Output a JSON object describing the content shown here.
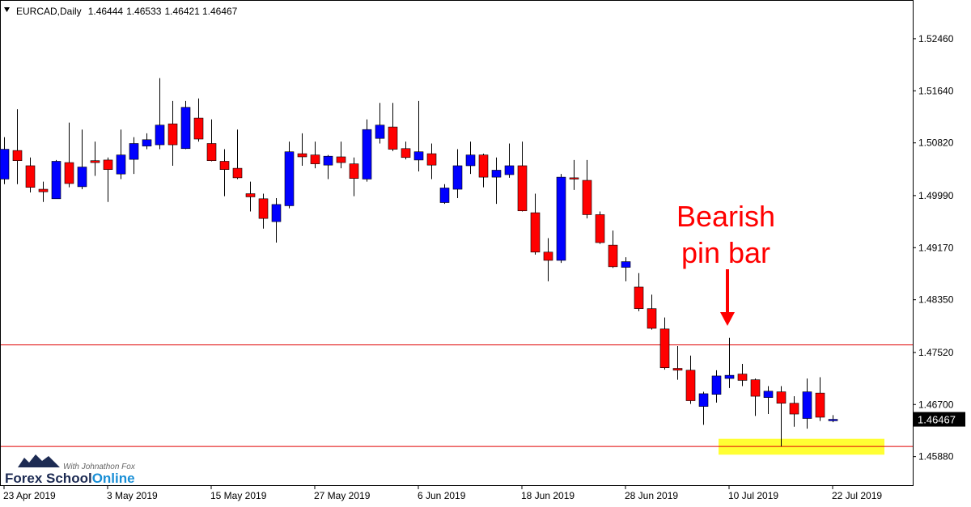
{
  "chart_data": {
    "type": "candlestick",
    "symbol": "EURCAD,Daily",
    "categories": [
      "23 Apr 2019",
      null,
      null,
      null,
      null,
      null,
      null,
      null,
      "3 May 2019",
      null,
      null,
      null,
      null,
      null,
      null,
      null,
      "15 May 2019",
      null,
      null,
      null,
      null,
      null,
      null,
      null,
      "27 May 2019",
      null,
      null,
      null,
      null,
      null,
      null,
      null,
      "6 Jun 2019",
      null,
      null,
      null,
      null,
      null,
      null,
      null,
      "18 Jun 2019",
      null,
      null,
      null,
      null,
      null,
      null,
      null,
      "28 Jun 2019",
      null,
      null,
      null,
      null,
      null,
      null,
      null,
      "10 Jul 2019",
      null,
      null,
      null,
      null,
      null,
      null,
      null,
      "22 Jul 2019"
    ],
    "open": [
      1.5025,
      1.507,
      1.5046,
      1.5009,
      1.4994,
      1.5051,
      1.5013,
      1.5054,
      1.5055,
      1.5033,
      1.5056,
      1.5077,
      1.5079,
      1.5112,
      1.5073,
      1.5121,
      1.5081,
      1.5053,
      1.5042,
      1.5002,
      1.4994,
      1.4958,
      1.4983,
      1.5065,
      1.5063,
      1.5047,
      1.506,
      1.5049,
      1.5025,
      1.5089,
      1.5107,
      1.5073,
      1.5055,
      1.5065,
      1.4988,
      1.5009,
      1.5046,
      1.5063,
      1.5028,
      1.5032,
      1.5046,
      1.4972,
      1.491,
      1.4897,
      1.5027,
      1.5023,
      1.4969,
      1.4921,
      1.4886,
      1.4855,
      1.4821,
      1.4789,
      1.4727,
      1.4724,
      1.4667,
      1.4686,
      1.4711,
      1.4718,
      1.4709,
      1.4681,
      1.469,
      1.4672,
      1.4648,
      1.4688,
      1.46444
    ],
    "high": [
      1.5091,
      1.5135,
      1.5059,
      1.5021,
      1.5055,
      1.5114,
      1.5103,
      1.5084,
      1.5059,
      1.5103,
      1.5091,
      1.5097,
      1.5184,
      1.5148,
      1.5148,
      1.5152,
      1.5119,
      1.5072,
      1.5103,
      1.5021,
      1.5002,
      1.4995,
      1.5084,
      1.5097,
      1.5084,
      1.5063,
      1.5084,
      1.5059,
      1.5119,
      1.5145,
      1.5145,
      1.5084,
      1.5148,
      1.5081,
      1.5017,
      1.5072,
      1.5084,
      1.5065,
      1.5059,
      1.5081,
      1.5084,
      1.5002,
      1.4932,
      1.5033,
      1.5055,
      1.5055,
      1.4974,
      1.4944,
      1.4902,
      1.4877,
      1.4843,
      1.4807,
      1.4762,
      1.4747,
      1.469,
      1.4724,
      1.4775,
      1.4734,
      1.4711,
      1.4699,
      1.4699,
      1.4683,
      1.4711,
      1.4713,
      1.46533
    ],
    "low": [
      1.5017,
      1.5017,
      1.5004,
      1.4989,
      1.4994,
      1.5012,
      1.5009,
      1.503,
      1.4989,
      1.5025,
      1.5033,
      1.5072,
      1.5072,
      1.5046,
      1.5072,
      1.5084,
      1.5053,
      1.4998,
      1.5025,
      1.4974,
      1.4947,
      1.4925,
      1.4979,
      1.5046,
      1.5042,
      1.5025,
      1.5042,
      1.4998,
      1.5021,
      1.5081,
      1.5069,
      1.5056,
      1.5037,
      1.5025,
      1.4986,
      1.4995,
      1.5033,
      1.5012,
      1.4986,
      1.5027,
      1.4974,
      1.4906,
      1.4864,
      1.4893,
      1.5008,
      1.4963,
      1.4923,
      1.4885,
      1.4864,
      1.4817,
      1.4788,
      1.4725,
      1.4709,
      1.4671,
      1.4638,
      1.4673,
      1.4696,
      1.4699,
      1.4652,
      1.4655,
      1.4604,
      1.4635,
      1.4632,
      1.4644,
      1.46421
    ],
    "close": [
      1.5072,
      1.5054,
      1.5012,
      1.5005,
      1.5053,
      1.5018,
      1.5044,
      1.5051,
      1.504,
      1.5063,
      1.5081,
      1.5087,
      1.511,
      1.5079,
      1.5138,
      1.5088,
      1.5054,
      1.504,
      1.5027,
      1.4997,
      1.4963,
      1.4985,
      1.5068,
      1.506,
      1.5049,
      1.5061,
      1.5051,
      1.5026,
      1.5103,
      1.511,
      1.5072,
      1.5059,
      1.5068,
      1.5047,
      1.5011,
      1.5046,
      1.5063,
      1.5028,
      1.5039,
      1.5046,
      1.4975,
      1.491,
      1.4897,
      1.5028,
      1.5025,
      1.4969,
      1.4925,
      1.4887,
      1.4895,
      1.4821,
      1.479,
      1.4728,
      1.4724,
      1.4676,
      1.4687,
      1.4715,
      1.4716,
      1.4708,
      1.4683,
      1.4691,
      1.4672,
      1.4655,
      1.469,
      1.465,
      1.46467
    ],
    "up_color": "#0000ff",
    "down_color": "#ff0000",
    "ylim": [
      1.4543,
      1.5307
    ],
    "yticks": [
      {
        "value": 1.5246,
        "label": "1.52460"
      },
      {
        "value": 1.5164,
        "label": "1.51640"
      },
      {
        "value": 1.5082,
        "label": "1.50820"
      },
      {
        "value": 1.4999,
        "label": "1.49990"
      },
      {
        "value": 1.4917,
        "label": "1.49170"
      },
      {
        "value": 1.4835,
        "label": "1.48350"
      },
      {
        "value": 1.4752,
        "label": "1.47520"
      },
      {
        "value": 1.467,
        "label": "1.46700"
      },
      {
        "value": 1.4588,
        "label": "1.45880"
      }
    ],
    "levels": [
      {
        "value": 1.4764,
        "color": "#e00000"
      },
      {
        "value": 1.4604,
        "color": "#e00000"
      }
    ],
    "zone": {
      "range": [
        1.4591,
        1.4616
      ],
      "color": "#ffff33"
    },
    "annotation": [
      "Bearish",
      "pin bar"
    ],
    "watermark": {
      "brand": [
        "Forex School",
        "Online"
      ],
      "tagline": "With Johnathon Fox"
    }
  }
}
